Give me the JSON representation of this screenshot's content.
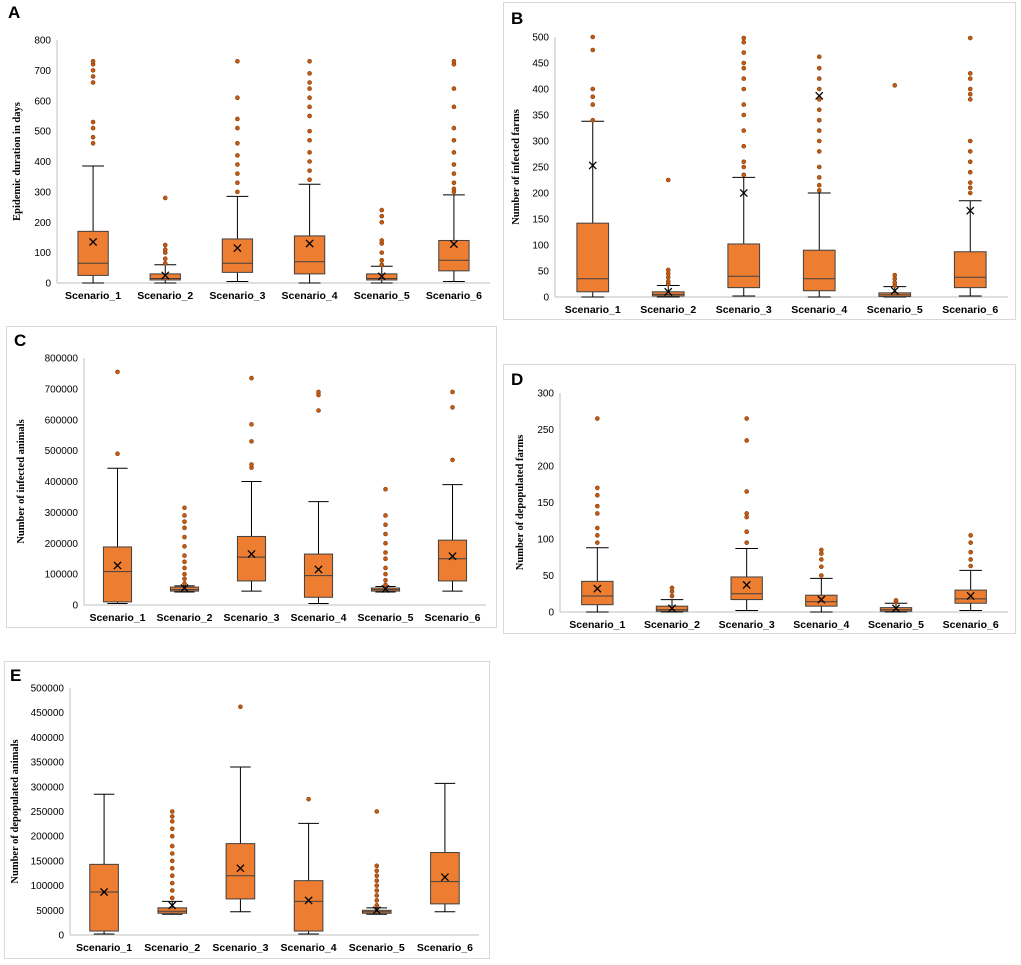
{
  "colors": {
    "box_fill": "#ED7D31",
    "box_stroke": "#404040",
    "outlier": "#C55A11",
    "outlier_stroke": "#843C0C",
    "axis": "#BFBFBF",
    "whisker": "#000000"
  },
  "chart_data": [
    {
      "panel": "A",
      "type": "box",
      "ylabel": "Epidemic duration in days",
      "ylim": [
        0,
        800
      ],
      "yticks": [
        0,
        100,
        200,
        300,
        400,
        500,
        600,
        700,
        800
      ],
      "categories": [
        "Scenario_1",
        "Scenario_2",
        "Scenario_3",
        "Scenario_4",
        "Scenario_5",
        "Scenario_6"
      ],
      "boxes": [
        {
          "min": 0,
          "q1": 25,
          "median": 65,
          "q3": 170,
          "max": 385,
          "mean": 135,
          "outliers": [
            460,
            480,
            510,
            530,
            660,
            680,
            700,
            720,
            730
          ]
        },
        {
          "min": 0,
          "q1": 10,
          "median": 15,
          "q3": 30,
          "max": 60,
          "mean": 25,
          "outliers": [
            65,
            80,
            100,
            110,
            125,
            280
          ]
        },
        {
          "min": 5,
          "q1": 35,
          "median": 65,
          "q3": 145,
          "max": 285,
          "mean": 115,
          "outliers": [
            300,
            330,
            360,
            390,
            420,
            460,
            510,
            540,
            610,
            730
          ]
        },
        {
          "min": 0,
          "q1": 30,
          "median": 70,
          "q3": 155,
          "max": 325,
          "mean": 130,
          "outliers": [
            340,
            370,
            400,
            430,
            470,
            500,
            550,
            580,
            610,
            640,
            660,
            690,
            730
          ]
        },
        {
          "min": 0,
          "q1": 10,
          "median": 15,
          "q3": 30,
          "max": 55,
          "mean": 22,
          "outliers": [
            60,
            75,
            100,
            130,
            140,
            200,
            220,
            240
          ]
        },
        {
          "min": 5,
          "q1": 40,
          "median": 75,
          "q3": 140,
          "max": 290,
          "mean": 128,
          "outliers": [
            300,
            310,
            330,
            360,
            390,
            430,
            470,
            510,
            580,
            640,
            720,
            730
          ]
        }
      ]
    },
    {
      "panel": "B",
      "type": "box",
      "ylabel": "Number of infected farms",
      "ylim": [
        0,
        500
      ],
      "yticks": [
        0,
        50,
        100,
        150,
        200,
        250,
        300,
        350,
        400,
        450,
        500
      ],
      "categories": [
        "Scenario_1",
        "Scenario_2",
        "Scenario_3",
        "Scenario_4",
        "Scenario_5",
        "Scenario_6"
      ],
      "boxes": [
        {
          "min": 0,
          "q1": 10,
          "median": 35,
          "q3": 142,
          "max": 338,
          "mean": 253,
          "outliers": [
            340,
            370,
            385,
            400,
            475,
            500
          ]
        },
        {
          "min": 0,
          "q1": 2,
          "median": 5,
          "q3": 10,
          "max": 22,
          "mean": 10,
          "outliers": [
            25,
            30,
            38,
            45,
            52,
            225
          ]
        },
        {
          "min": 2,
          "q1": 18,
          "median": 40,
          "q3": 102,
          "max": 230,
          "mean": 200,
          "outliers": [
            235,
            250,
            260,
            290,
            320,
            350,
            370,
            400,
            420,
            440,
            450,
            470,
            490,
            498
          ]
        },
        {
          "min": 0,
          "q1": 12,
          "median": 35,
          "q3": 90,
          "max": 200,
          "mean": 387,
          "outliers": [
            205,
            215,
            230,
            250,
            280,
            300,
            320,
            340,
            360,
            380,
            400,
            420,
            440,
            462
          ]
        },
        {
          "min": 0,
          "q1": 1,
          "median": 4,
          "q3": 8,
          "max": 20,
          "mean": 12,
          "outliers": [
            22,
            28,
            35,
            42,
            407
          ]
        },
        {
          "min": 2,
          "q1": 18,
          "median": 38,
          "q3": 87,
          "max": 185,
          "mean": 166,
          "outliers": [
            200,
            210,
            220,
            240,
            260,
            280,
            300,
            380,
            390,
            400,
            420,
            430,
            498
          ]
        }
      ]
    },
    {
      "panel": "C",
      "type": "box",
      "ylabel": "Number of infected animals",
      "ylim": [
        0,
        800000
      ],
      "yticks": [
        0,
        100000,
        200000,
        300000,
        400000,
        500000,
        600000,
        700000,
        800000
      ],
      "categories": [
        "Scenario_1",
        "Scenario_2",
        "Scenario_3",
        "Scenario_4",
        "Scenario_5",
        "Scenario_6"
      ],
      "boxes": [
        {
          "min": 5000,
          "q1": 10000,
          "median": 108000,
          "q3": 188000,
          "max": 443000,
          "mean": 128000,
          "outliers": [
            490000,
            755000
          ]
        },
        {
          "min": 42000,
          "q1": 45000,
          "median": 50000,
          "q3": 58000,
          "max": 62000,
          "mean": 55000,
          "outliers": [
            70000,
            85000,
            100000,
            120000,
            140000,
            160000,
            190000,
            220000,
            250000,
            270000,
            290000,
            315000
          ]
        },
        {
          "min": 45000,
          "q1": 78000,
          "median": 155000,
          "q3": 222000,
          "max": 400000,
          "mean": 165000,
          "outliers": [
            445000,
            455000,
            530000,
            585000,
            735000
          ]
        },
        {
          "min": 5000,
          "q1": 25000,
          "median": 95000,
          "q3": 165000,
          "max": 335000,
          "mean": 115000,
          "outliers": [
            630000,
            680000,
            690000
          ]
        },
        {
          "min": 42000,
          "q1": 45000,
          "median": 50000,
          "q3": 55000,
          "max": 60000,
          "mean": 52000,
          "outliers": [
            65000,
            80000,
            100000,
            120000,
            150000,
            170000,
            200000,
            230000,
            260000,
            290000,
            375000
          ]
        },
        {
          "min": 45000,
          "q1": 78000,
          "median": 150000,
          "q3": 210000,
          "max": 390000,
          "mean": 158000,
          "outliers": [
            470000,
            640000,
            690000
          ]
        }
      ]
    },
    {
      "panel": "D",
      "type": "box",
      "ylabel": "Number of depopulated farms",
      "ylim": [
        0,
        300
      ],
      "yticks": [
        0,
        50,
        100,
        150,
        200,
        250,
        300
      ],
      "categories": [
        "Scenario_1",
        "Scenario_2",
        "Scenario_3",
        "Scenario_4",
        "Scenario_5",
        "Scenario_6"
      ],
      "boxes": [
        {
          "min": 0,
          "q1": 10,
          "median": 22,
          "q3": 42,
          "max": 88,
          "mean": 32,
          "outliers": [
            95,
            105,
            115,
            135,
            145,
            160,
            170,
            265
          ]
        },
        {
          "min": 0,
          "q1": 1,
          "median": 3,
          "q3": 8,
          "max": 17,
          "mean": 5,
          "outliers": [
            22,
            28,
            33
          ]
        },
        {
          "min": 2,
          "q1": 17,
          "median": 25,
          "q3": 48,
          "max": 87,
          "mean": 37,
          "outliers": [
            95,
            110,
            130,
            135,
            165,
            235,
            265
          ]
        },
        {
          "min": 0,
          "q1": 8,
          "median": 14,
          "q3": 23,
          "max": 46,
          "mean": 17,
          "outliers": [
            50,
            62,
            72,
            80,
            85
          ]
        },
        {
          "min": 0,
          "q1": 1,
          "median": 3,
          "q3": 6,
          "max": 12,
          "mean": 5,
          "outliers": [
            14,
            16
          ]
        },
        {
          "min": 2,
          "q1": 12,
          "median": 18,
          "q3": 30,
          "max": 57,
          "mean": 22,
          "outliers": [
            63,
            72,
            82,
            95,
            105
          ]
        }
      ]
    },
    {
      "panel": "E",
      "type": "box",
      "ylabel": "Number of depopulated animals",
      "ylim": [
        0,
        500000
      ],
      "yticks": [
        0,
        50000,
        100000,
        150000,
        200000,
        250000,
        300000,
        350000,
        400000,
        450000,
        500000
      ],
      "categories": [
        "Scenario_1",
        "Scenario_2",
        "Scenario_3",
        "Scenario_4",
        "Scenario_5",
        "Scenario_6"
      ],
      "boxes": [
        {
          "min": 2000,
          "q1": 8000,
          "median": 87000,
          "q3": 143000,
          "max": 285000,
          "mean": 87000,
          "outliers": []
        },
        {
          "min": 42000,
          "q1": 44000,
          "median": 48000,
          "q3": 55000,
          "max": 68000,
          "mean": 60000,
          "outliers": [
            75000,
            90000,
            105000,
            120000,
            135000,
            150000,
            165000,
            180000,
            200000,
            215000,
            230000,
            240000,
            250000
          ]
        },
        {
          "min": 47000,
          "q1": 73000,
          "median": 120000,
          "q3": 185000,
          "max": 340000,
          "mean": 135000,
          "outliers": [
            462000
          ]
        },
        {
          "min": 2000,
          "q1": 8000,
          "median": 68000,
          "q3": 110000,
          "max": 226000,
          "mean": 70000,
          "outliers": [
            275000
          ]
        },
        {
          "min": 42000,
          "q1": 44000,
          "median": 47000,
          "q3": 50000,
          "max": 55000,
          "mean": 50000,
          "outliers": [
            60000,
            70000,
            80000,
            90000,
            100000,
            110000,
            120000,
            130000,
            140000,
            250000
          ]
        },
        {
          "min": 47000,
          "q1": 63000,
          "median": 108000,
          "q3": 167000,
          "max": 307000,
          "mean": 117000,
          "outliers": []
        }
      ]
    }
  ]
}
